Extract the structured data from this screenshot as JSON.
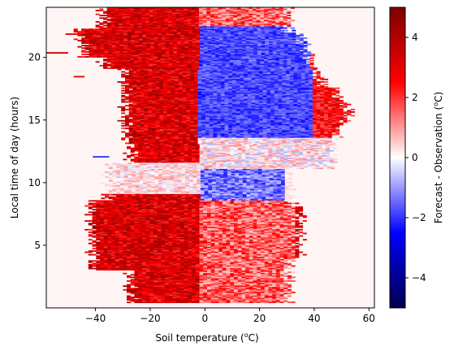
{
  "chart_data": {
    "type": "heatmap",
    "title": "",
    "xlabel_prefix": "Soil temperature (",
    "xlabel_sup": "o",
    "xlabel_suffix": "C)",
    "ylabel": "Local time of day (hours)",
    "xlim": [
      -58,
      62
    ],
    "ylim": [
      0,
      24
    ],
    "xticks": [
      -40,
      -20,
      0,
      20,
      40,
      60
    ],
    "yticks": [
      5,
      10,
      15,
      20
    ],
    "xtick_labels": [
      "−40",
      "−20",
      "0",
      "20",
      "40",
      "60"
    ],
    "ytick_labels": [
      "5",
      "10",
      "15",
      "20"
    ],
    "colormap": "seismic",
    "colormap_stops": [
      "#00004c",
      "#0000ff",
      "#ffffff",
      "#ff0000",
      "#7f0000"
    ],
    "background_color": "#fff5f5",
    "colorbar": {
      "label_prefix": "Forecast - Observation (",
      "label_sup": "o",
      "label_suffix": "C)",
      "range": [
        -5,
        5
      ],
      "ticks": [
        -4,
        -2,
        0,
        2,
        4
      ],
      "tick_labels": [
        "−4",
        "−2",
        "0",
        "2",
        "4"
      ]
    },
    "grid": false,
    "description_regions": [
      {
        "t0": 13.5,
        "t1": 22,
        "x0": -1,
        "x1": 42,
        "bias": -1.5
      },
      {
        "t0": 17,
        "t1": 20,
        "x0": 20,
        "x1": 35,
        "bias": -2.2
      },
      {
        "t0": 14,
        "t1": 22.5,
        "x0": -38,
        "x1": -2,
        "bias": 2.6
      },
      {
        "t0": 11,
        "t1": 13.5,
        "x0": -20,
        "x1": 45,
        "bias": 0.3
      },
      {
        "t0": 8.5,
        "t1": 11,
        "x0": -25,
        "x1": 30,
        "bias": -1.2
      },
      {
        "t0": 0.5,
        "t1": 8.5,
        "x0": -35,
        "x1": 0,
        "bias": 2.8
      },
      {
        "t0": 2,
        "t1": 7,
        "x0": 5,
        "x1": 30,
        "bias": 1.8
      }
    ]
  }
}
